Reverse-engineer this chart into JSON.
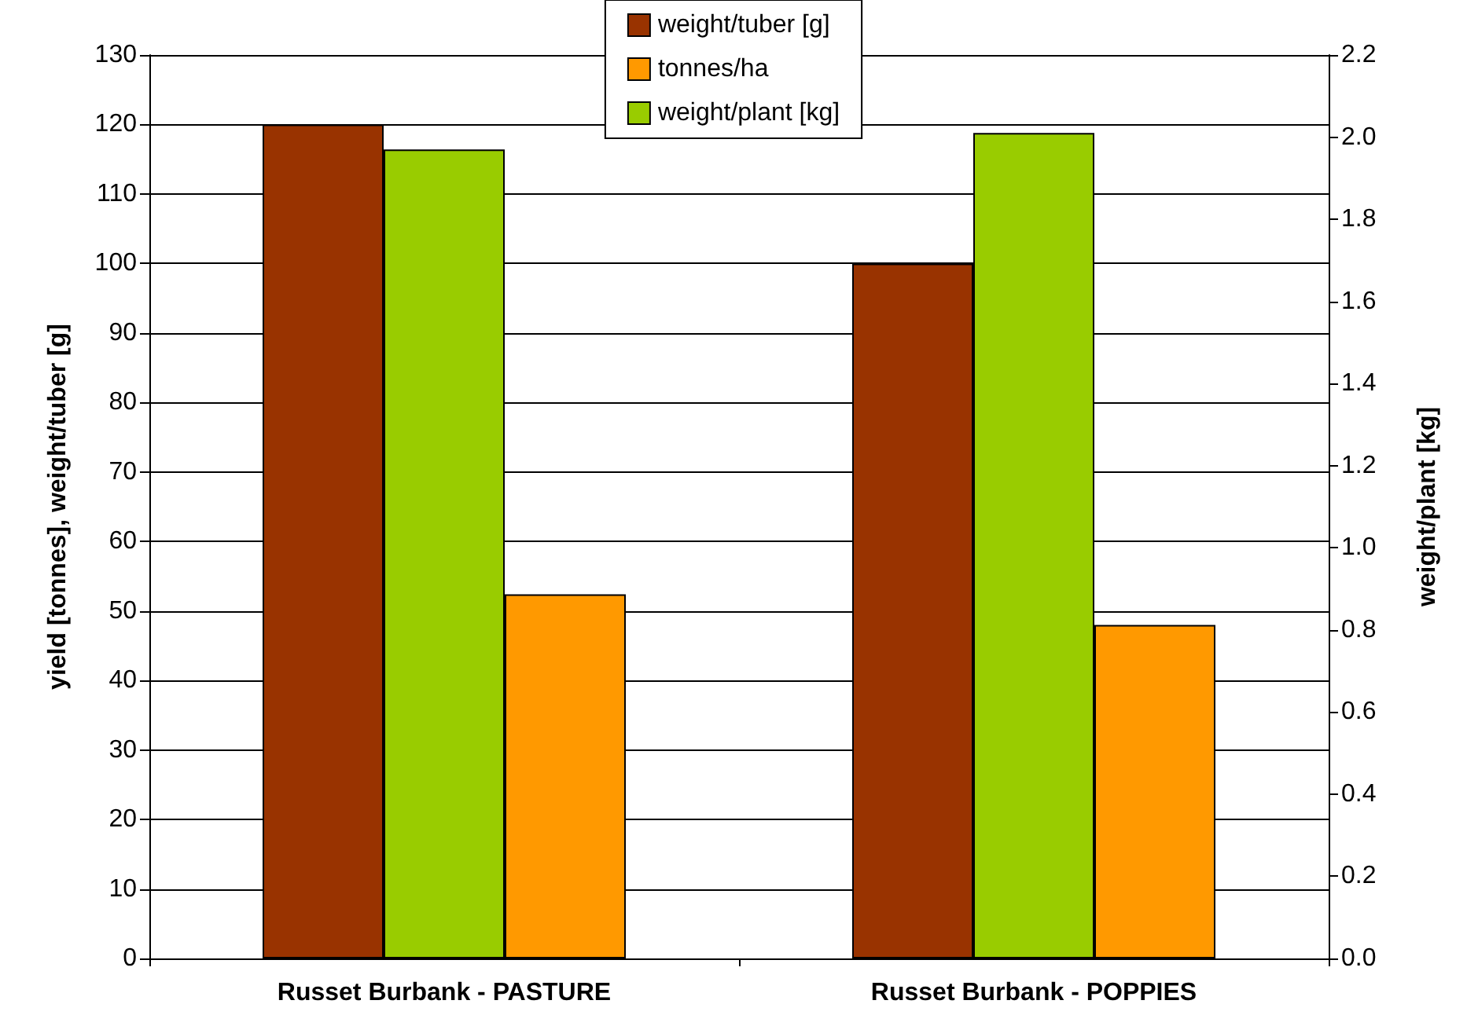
{
  "chart_data": {
    "type": "bar",
    "categories": [
      "Russet Burbank - PASTURE",
      "Russet Burbank - POPPIES"
    ],
    "ylabel": "yield [tonnes], weight/tuber [g]",
    "y2label": "weight/plant [kg]",
    "series": [
      {
        "name": "weight/tuber [g]",
        "color": "#993300",
        "values": [
          120,
          100
        ]
      },
      {
        "name": "weight/plant [kg]",
        "color": "#99cc00",
        "values": [
          1.97,
          2.01
        ],
        "axis": "y2"
      },
      {
        "name": "tonnes/ha",
        "color": "#ff9900",
        "values": [
          52.4,
          48
        ]
      }
    ],
    "ylim": [
      0,
      130
    ],
    "yticks": [
      0,
      10,
      20,
      30,
      40,
      50,
      60,
      70,
      80,
      90,
      100,
      110,
      120,
      130
    ],
    "y2lim": [
      0,
      2.2
    ],
    "y2ticks": [
      {
        "value": 0,
        "label": "0.0"
      },
      {
        "value": 0.2,
        "label": "0.2"
      },
      {
        "value": 0.4,
        "label": "0.4"
      },
      {
        "value": 0.6,
        "label": "0.6"
      },
      {
        "value": 0.8,
        "label": "0.8"
      },
      {
        "value": 1,
        "label": "1.0"
      },
      {
        "value": 1.2,
        "label": "1.2"
      },
      {
        "value": 1.4,
        "label": "1.4"
      },
      {
        "value": 1.6,
        "label": "1.6"
      },
      {
        "value": 1.8,
        "label": "1.8"
      },
      {
        "value": 2,
        "label": "2.0"
      },
      {
        "value": 2.2,
        "label": "2.2"
      }
    ],
    "grid": "y",
    "legend": "top"
  }
}
